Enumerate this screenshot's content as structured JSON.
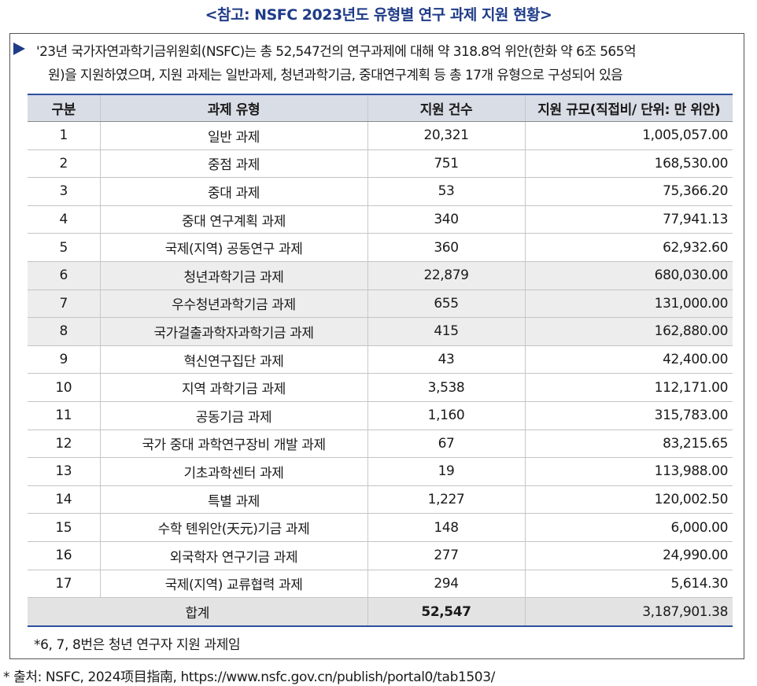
{
  "title": "<참고: NSFC 2023년도 유형별 연구 과제 지원 현황>",
  "intro": {
    "line1": "'23년 국가자연과학기금위원회(NSFC)는 총 52,547건의 연구과제에 대해 약 318.8억 위안(한화 약 6조 565억",
    "line2": "원)을 지원하였으며, 지원 과제는 일반과제, 청년과학기금, 중대연구계획 등 총 17개 유형으로 구성되어 있음"
  },
  "table": {
    "headers": [
      "구분",
      "과제 유형",
      "지원 건수",
      "지원 규모(직접비/ 단위: 만 위안)"
    ],
    "rows": [
      [
        "1",
        "일반 과제",
        "20,321",
        "1,005,057.00"
      ],
      [
        "2",
        "중점 과제",
        "751",
        "168,530.00"
      ],
      [
        "3",
        "중대 과제",
        "53",
        "75,366.20"
      ],
      [
        "4",
        "중대 연구계획 과제",
        "340",
        "77,941.13"
      ],
      [
        "5",
        "국제(지역) 공동연구 과제",
        "360",
        "62,932.60"
      ],
      [
        "6",
        "청년과학기금 과제",
        "22,879",
        "680,030.00"
      ],
      [
        "7",
        "우수청년과학기금 과제",
        "655",
        "131,000.00"
      ],
      [
        "8",
        "국가걸출과학자과학기금 과제",
        "415",
        "162,880.00"
      ],
      [
        "9",
        "혁신연구집단 과제",
        "43",
        "42,400.00"
      ],
      [
        "10",
        "지역 과학기금 과제",
        "3,538",
        "112,171.00"
      ],
      [
        "11",
        "공동기금 과제",
        "1,160",
        "315,783.00"
      ],
      [
        "12",
        "국가 중대 과학연구장비 개발 과제",
        "67",
        "83,215.65"
      ],
      [
        "13",
        "기초과학센터 과제",
        "19",
        "113,988.00"
      ],
      [
        "14",
        "특별 과제",
        "1,227",
        "120,002.50"
      ],
      [
        "15",
        "수학 톈위안(天元)기금 과제",
        "148",
        "6,000.00"
      ],
      [
        "16",
        "외국학자 연구기금 과제",
        "277",
        "24,990.00"
      ],
      [
        "17",
        "국제(지역) 교류협력 과제",
        "294",
        "5,614.30"
      ]
    ],
    "total": {
      "label": "합계",
      "count": "52,547",
      "amount": "3,187,901.38"
    }
  },
  "footnote": "*6, 7, 8번은 청년 연구자 지원 과제임",
  "source": "* 출처: NSFC, 2024项目指南, https://www.nsfc.gov.cn/publish/portal0/tab1503/"
}
